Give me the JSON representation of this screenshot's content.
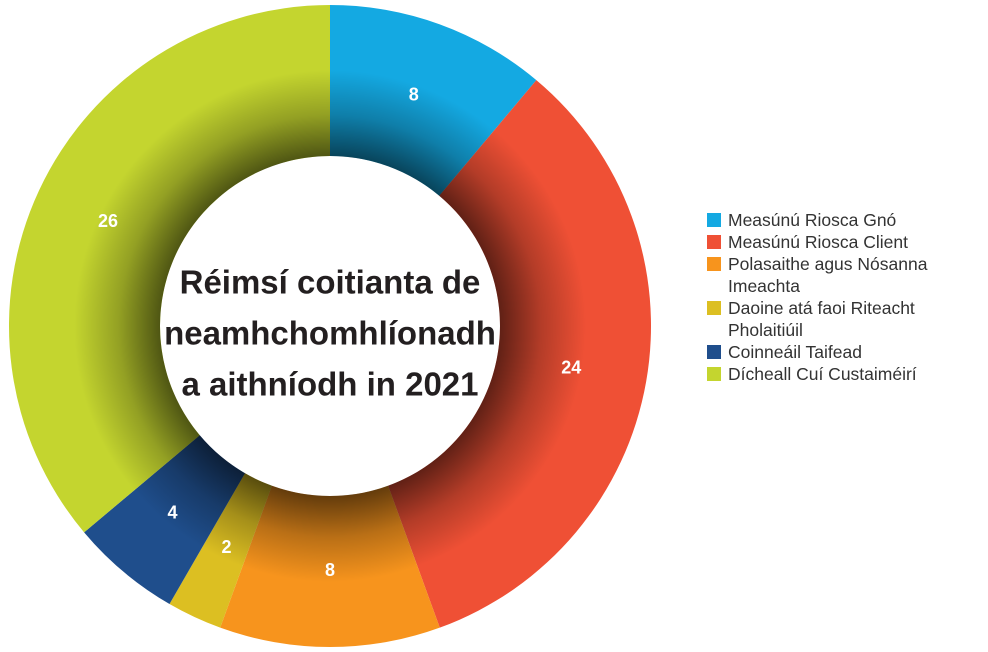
{
  "chart_data": {
    "type": "donut",
    "title": [
      "Réimsí coitianta de",
      "neamhchomhlíonadh",
      "a aithníodh in 2021"
    ],
    "categories": [
      "Measúnú Riosca Gnó",
      "Measúnú Riosca Client",
      "Polasaithe agus Nósanna Imeachta",
      "Daoine atá faoi Riteacht Pholaitiúil",
      "Coinneáil Taifead",
      "Dícheall Cuí Custaiméirí"
    ],
    "values": [
      8,
      24,
      8,
      2,
      4,
      26
    ],
    "colors": [
      "#14a9e2",
      "#ef5035",
      "#f7941d",
      "#dcbf22",
      "#1f4e8c",
      "#c4d52f"
    ],
    "legend": "right"
  }
}
